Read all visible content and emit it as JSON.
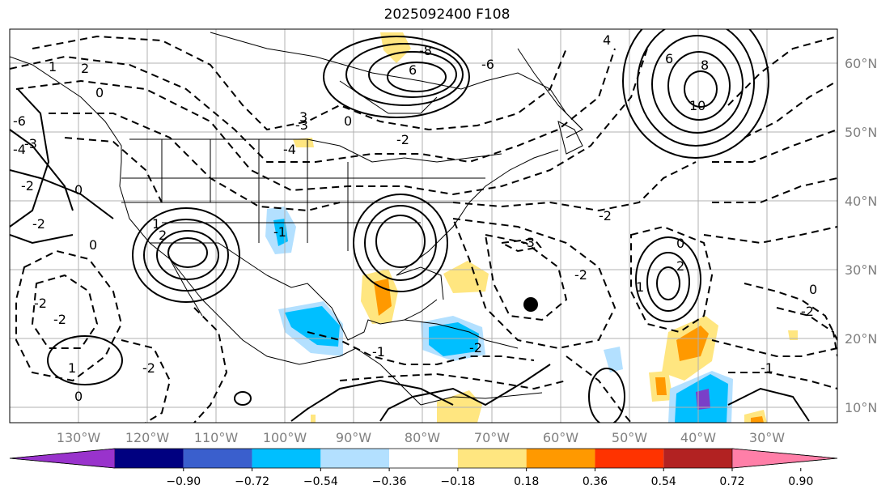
{
  "title": "2025092400 F108",
  "map": {
    "lon_ticks": [
      "130°W",
      "120°W",
      "110°W",
      "100°W",
      "90°W",
      "80°W",
      "70°W",
      "60°W",
      "50°W",
      "40°W",
      "30°W"
    ],
    "lat_ticks": [
      "60°N",
      "50°N",
      "40°N",
      "30°N",
      "20°N",
      "10°N"
    ],
    "contour_labels": [
      "-6",
      "-4",
      "-3",
      "-2",
      "-2",
      "0",
      "0",
      "0",
      "1",
      "1",
      "2",
      "2",
      "-2",
      "-2",
      "3",
      "-3",
      "-4",
      "-8",
      "6",
      "-6",
      "4",
      "-2",
      "-1",
      "0",
      "6",
      "8",
      "10",
      "-2",
      "-2",
      "-1",
      "-3",
      "-2",
      "0",
      "0",
      "-1",
      "1",
      "1",
      "2",
      "-2",
      "-2",
      "0"
    ],
    "colors": {
      "neg_strong": "#b3e0ff",
      "neg_med": "#00bfff",
      "neg_deep": "#1e3fbf",
      "neg_violet": "#7a3fc8",
      "pos_weak": "#ffe680",
      "pos_med": "#ff9900"
    }
  },
  "colorbar": {
    "colors": [
      "#9933cc",
      "#000080",
      "#3a5fcd",
      "#00bfff",
      "#b3e0ff",
      "#ffffff",
      "#ffe680",
      "#ff9900",
      "#ff3300",
      "#b22222",
      "#ff7fa8"
    ],
    "labels": [
      "−0.90",
      "−0.72",
      "−0.54",
      "−0.36",
      "−0.18",
      "0.18",
      "0.36",
      "0.54",
      "0.72",
      "0.90"
    ]
  }
}
